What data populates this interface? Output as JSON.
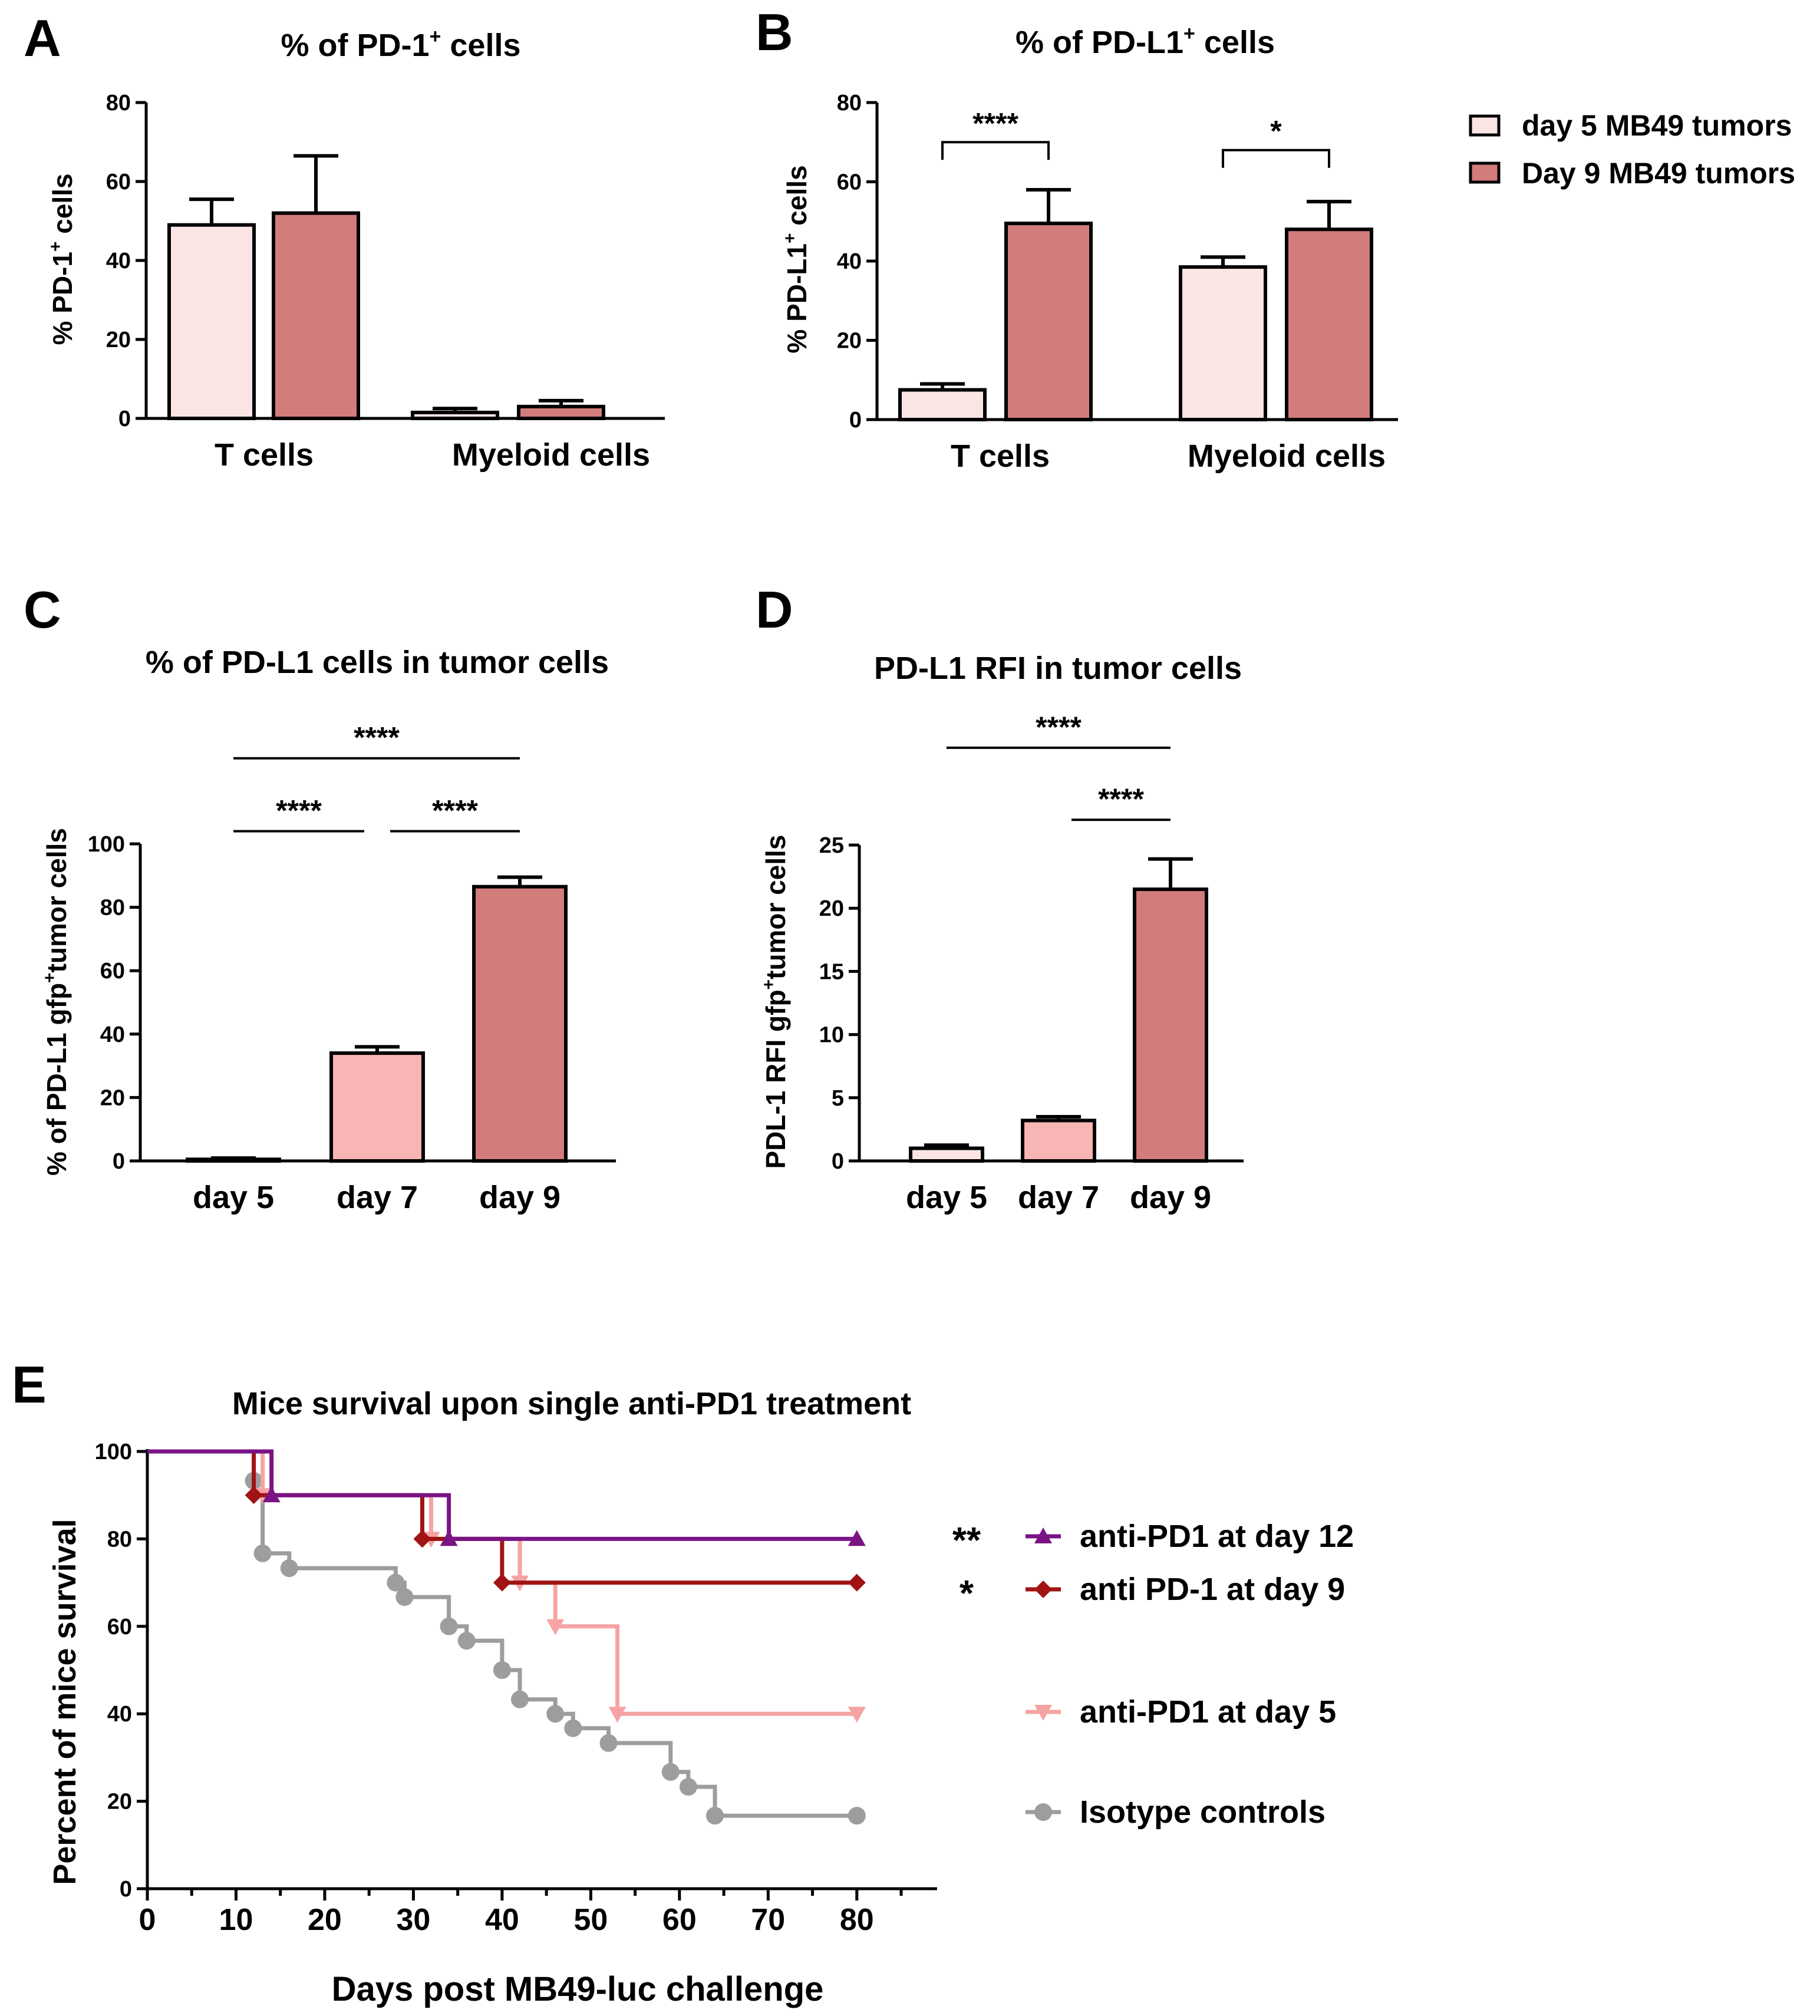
{
  "colors": {
    "day5": "#fbe5e4",
    "day7": "#f7b5b5",
    "day9": "#d37c7c",
    "isotype": "#9d9d9d",
    "pd1_d5": "#f6a3a3",
    "pd1_d9": "#a01414",
    "pd1_d12": "#7a1485"
  },
  "chart_data": [
    {
      "panel": "A",
      "type": "bar",
      "title": "% of PD-1",
      "title_sup": "+",
      "title_suffix": " cells",
      "ylabel": "% PD-1",
      "ylabel_sup": "+",
      "ylabel_suffix": " cells",
      "ylim": [
        0,
        80
      ],
      "yticks": [
        0,
        20,
        40,
        60,
        80
      ],
      "categories": [
        "T cells",
        "Myeloid cells"
      ],
      "series": [
        {
          "name": "day 5 MB49 tumors",
          "color_key": "day5",
          "values": [
            49,
            1.5
          ],
          "errors": [
            6.5,
            1
          ]
        },
        {
          "name": "Day 9 MB49 tumors",
          "color_key": "day9",
          "values": [
            52,
            3
          ],
          "errors": [
            14.5,
            1.5
          ]
        }
      ],
      "significance": []
    },
    {
      "panel": "B",
      "type": "bar",
      "title": "% of PD-L1",
      "title_sup": "+",
      "title_suffix": " cells",
      "ylabel": "% PD-L1",
      "ylabel_sup": "+",
      "ylabel_suffix": " cells",
      "ylim": [
        0,
        80
      ],
      "yticks": [
        0,
        20,
        40,
        60,
        80
      ],
      "categories": [
        "T cells",
        "Myeloid cells"
      ],
      "series": [
        {
          "name": "day 5 MB49 tumors",
          "color_key": "day5",
          "values": [
            7.5,
            38.5
          ],
          "errors": [
            1.5,
            2.5
          ]
        },
        {
          "name": "Day 9 MB49 tumors",
          "color_key": "day9",
          "values": [
            49.5,
            48
          ],
          "errors": [
            8.5,
            7
          ]
        }
      ],
      "significance": [
        {
          "label": "****",
          "category": 0,
          "bracket_y": 70
        },
        {
          "label": "*",
          "category": 1,
          "bracket_y": 68
        }
      ]
    },
    {
      "panel": "C",
      "type": "bar",
      "title": "% of PD-L1 cells in tumor cells",
      "ylabel": "% of PD-L1 gfp",
      "ylabel_sup": "+",
      "ylabel_suffix": "tumor cells",
      "ylim": [
        0,
        100
      ],
      "yticks": [
        0,
        20,
        40,
        60,
        80,
        100
      ],
      "categories": [
        "day 5",
        "day 7",
        "day 9"
      ],
      "color_keys": [
        "day5",
        "day7",
        "day9"
      ],
      "values": [
        0.5,
        34,
        86.5
      ],
      "errors": [
        0.4,
        2,
        3
      ],
      "significance": [
        {
          "label": "****",
          "from": 0,
          "to": 1,
          "line_y": 104
        },
        {
          "label": "****",
          "from": 1,
          "to": 2,
          "line_y": 104
        },
        {
          "label": "****",
          "from": 0,
          "to": 2,
          "line_y": 127
        }
      ]
    },
    {
      "panel": "D",
      "type": "bar",
      "title": "PD-L1 RFI in tumor cells",
      "ylabel": "PDL-1 RFI gfp",
      "ylabel_sup": "+",
      "ylabel_suffix": "tumor cells",
      "ylim": [
        0,
        25
      ],
      "yticks": [
        0,
        5,
        10,
        15,
        20,
        25
      ],
      "categories": [
        "day 5",
        "day 7",
        "day 9"
      ],
      "color_keys": [
        "day5",
        "day7",
        "day9"
      ],
      "values": [
        1,
        3.2,
        21.5
      ],
      "errors": [
        0.25,
        0.3,
        2.4
      ],
      "significance": [
        {
          "label": "****",
          "from": 1,
          "to": 2,
          "line_y": 27
        },
        {
          "label": "****",
          "from": 0,
          "to": 2,
          "line_y": 32.7
        }
      ]
    },
    {
      "panel": "E",
      "type": "line",
      "subtype": "kaplan-meier step",
      "title": "Mice survival upon single anti-PD1 treatment",
      "xlabel": "Days post MB49-luc challenge",
      "ylabel": "Percent of mice survival",
      "xlim": [
        0,
        85
      ],
      "ylim": [
        0,
        100
      ],
      "xticks": [
        0,
        10,
        20,
        30,
        40,
        50,
        60,
        70,
        80
      ],
      "yticks": [
        0,
        20,
        40,
        60,
        80,
        100
      ],
      "series": [
        {
          "name": "anti-PD1 at day 12",
          "color_key": "pd1_d12",
          "marker": "triangle-up",
          "sig": "**",
          "steps": [
            [
              0,
              100
            ],
            [
              14,
              90
            ],
            [
              34,
              80
            ],
            [
              80,
              80
            ]
          ],
          "markers": [
            [
              14,
              90
            ],
            [
              34,
              80
            ],
            [
              80,
              80
            ]
          ]
        },
        {
          "name": "anti PD-1 at day 9",
          "color_key": "pd1_d9",
          "marker": "diamond",
          "sig": "*",
          "steps": [
            [
              0,
              100
            ],
            [
              12,
              90
            ],
            [
              31,
              80
            ],
            [
              40,
              70
            ],
            [
              80,
              70
            ]
          ],
          "markers": [
            [
              12,
              90
            ],
            [
              31,
              80
            ],
            [
              40,
              70
            ],
            [
              80,
              70
            ]
          ]
        },
        {
          "name": "anti-PD1 at day 5",
          "color_key": "pd1_d5",
          "marker": "triangle-down",
          "sig": "",
          "steps": [
            [
              0,
              100
            ],
            [
              13,
              90
            ],
            [
              32,
              80
            ],
            [
              42,
              70
            ],
            [
              46,
              60
            ],
            [
              53,
              40
            ],
            [
              80,
              40
            ]
          ],
          "markers": [
            [
              13,
              90
            ],
            [
              32,
              80
            ],
            [
              42,
              70
            ],
            [
              46,
              60
            ],
            [
              53,
              40
            ],
            [
              80,
              40
            ]
          ]
        },
        {
          "name": "Isotype controls",
          "color_key": "isotype",
          "marker": "circle",
          "sig": "",
          "steps": [
            [
              0,
              100
            ],
            [
              12,
              93.3
            ],
            [
              13,
              76.7
            ],
            [
              16,
              73.3
            ],
            [
              28,
              70
            ],
            [
              29,
              66.7
            ],
            [
              34,
              60
            ],
            [
              36,
              56.7
            ],
            [
              40,
              50
            ],
            [
              42,
              43.3
            ],
            [
              46,
              40
            ],
            [
              48,
              36.7
            ],
            [
              52,
              33.3
            ],
            [
              59,
              26.7
            ],
            [
              61,
              23.3
            ],
            [
              64,
              16.7
            ],
            [
              80,
              16.7
            ]
          ],
          "markers": [
            [
              12,
              93.3
            ],
            [
              13,
              76.7
            ],
            [
              16,
              73.3
            ],
            [
              28,
              70
            ],
            [
              29,
              66.7
            ],
            [
              34,
              60
            ],
            [
              36,
              56.7
            ],
            [
              40,
              50
            ],
            [
              42,
              43.3
            ],
            [
              46,
              40
            ],
            [
              48,
              36.7
            ],
            [
              52,
              33.3
            ],
            [
              59,
              26.7
            ],
            [
              61,
              23.3
            ],
            [
              64,
              16.7
            ],
            [
              80,
              16.7
            ]
          ]
        }
      ]
    }
  ]
}
